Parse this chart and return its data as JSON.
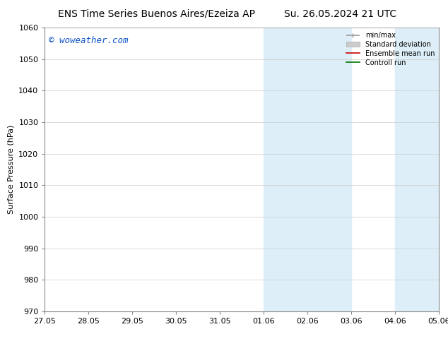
{
  "title_left": "ENS Time Series Buenos Aires/Ezeiza AP",
  "title_right": "Su. 26.05.2024 21 UTC",
  "ylabel": "Surface Pressure (hPa)",
  "ylim": [
    970,
    1060
  ],
  "yticks": [
    970,
    980,
    990,
    1000,
    1010,
    1020,
    1030,
    1040,
    1050,
    1060
  ],
  "xtick_labels": [
    "27.05",
    "28.05",
    "29.05",
    "30.05",
    "31.05",
    "01.06",
    "02.06",
    "03.06",
    "04.06",
    "05.06"
  ],
  "xtick_positions": [
    0,
    1,
    2,
    3,
    4,
    5,
    6,
    7,
    8,
    9
  ],
  "shaded_regions": [
    {
      "xmin": 5.0,
      "xmax": 5.5
    },
    {
      "xmin": 5.5,
      "xmax": 7.0
    },
    {
      "xmin": 8.0,
      "xmax": 8.5
    },
    {
      "xmin": 8.5,
      "xmax": 9.0
    }
  ],
  "shaded_color": "#ddeef8",
  "watermark": "© woweather.com",
  "watermark_color": "#1155cc",
  "legend_entries": [
    {
      "label": "min/max",
      "color": "#999999",
      "lw": 1.2
    },
    {
      "label": "Standard deviation",
      "color": "#cccccc",
      "lw": 6
    },
    {
      "label": "Ensemble mean run",
      "color": "#cc0000",
      "lw": 1.2
    },
    {
      "label": "Controll run",
      "color": "#007700",
      "lw": 1.2
    }
  ],
  "bg_color": "#ffffff",
  "spine_color": "#888888",
  "grid_color": "#cccccc",
  "title_fontsize": 10,
  "axis_fontsize": 8,
  "tick_fontsize": 8,
  "watermark_fontsize": 9
}
